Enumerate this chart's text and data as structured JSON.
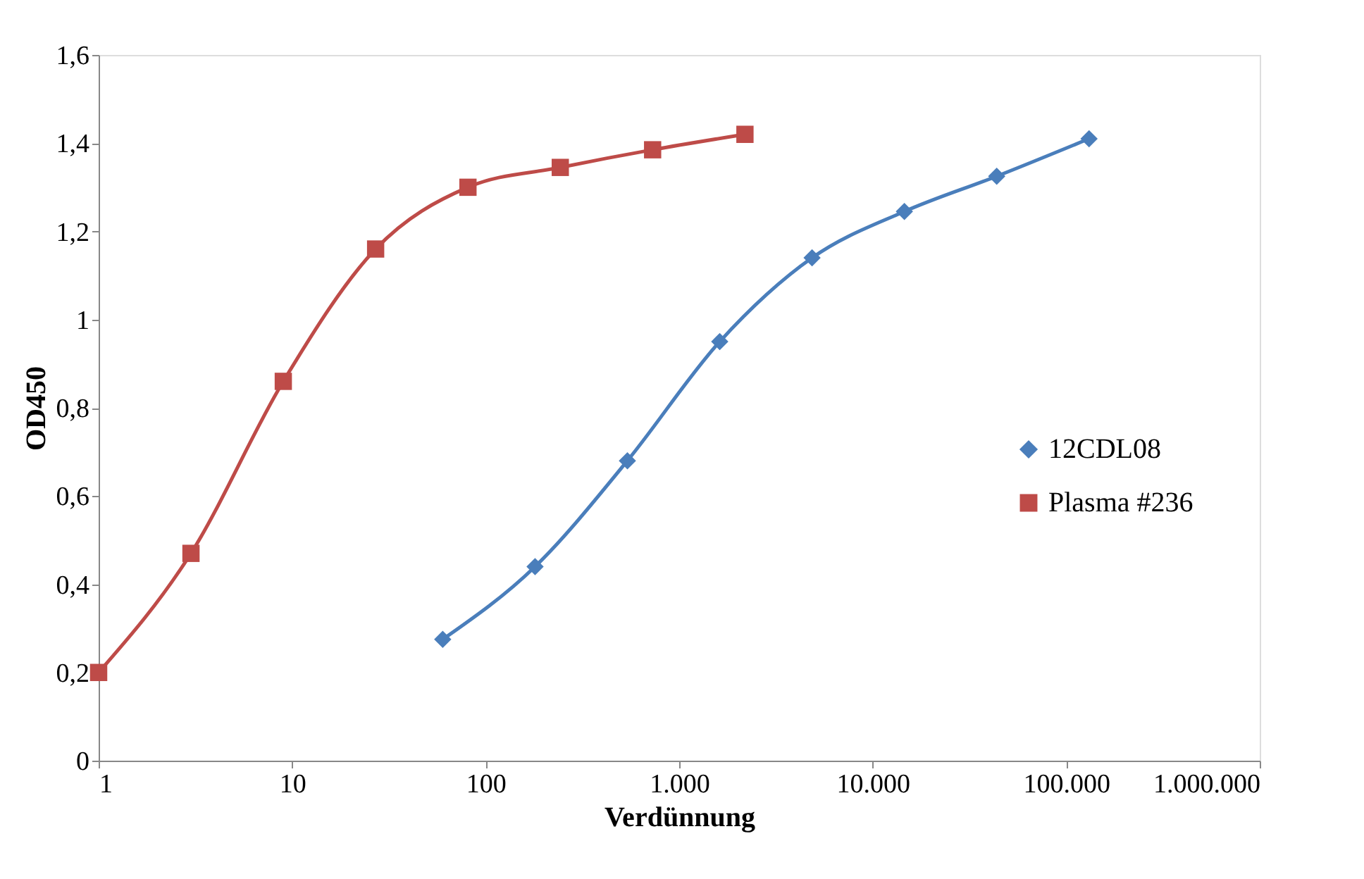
{
  "chart_data": {
    "type": "line",
    "xlabel": "Verdünnung",
    "ylabel": "OD450",
    "log": "x",
    "marker": "circle",
    "line_style": "solid",
    "grid": false,
    "legend": "right",
    "xlim": [
      1,
      1000000
    ],
    "xticks": [
      1,
      10,
      100,
      {
        "value": 1000,
        "label": "1.000"
      },
      {
        "value": 10000,
        "label": "10.000"
      },
      {
        "value": 100000,
        "label": "100.000"
      },
      {
        "value": 1000000,
        "label": "1.000.000"
      }
    ],
    "ylim": [
      0,
      1.6
    ],
    "yticks": [
      0,
      {
        "value": 0.2,
        "label": "0,2"
      },
      {
        "value": 0.4,
        "label": "0,4"
      },
      {
        "value": 0.6,
        "label": "0,6"
      },
      {
        "value": 0.8,
        "label": "0,8"
      },
      1,
      {
        "value": 1.2,
        "label": "1,2"
      },
      {
        "value": 1.4,
        "label": "1,4"
      },
      {
        "value": 1.6,
        "label": "1,6"
      }
    ],
    "series": [
      {
        "name": "12CDL08",
        "color": "#4a7ebb",
        "marker": "diamond",
        "x": [
          60,
          180,
          540,
          1620,
          4860,
          14580,
          43740,
          131220
        ],
        "values": [
          0.275,
          0.44,
          0.68,
          0.95,
          1.14,
          1.245,
          1.325,
          1.41
        ]
      },
      {
        "name": "Plasma #236",
        "color": "#be4b48",
        "marker": "square",
        "x": [
          1,
          3,
          9,
          27,
          81,
          243,
          729,
          2187
        ],
        "values": [
          0.2,
          0.47,
          0.86,
          1.16,
          1.3,
          1.345,
          1.385,
          1.42
        ]
      }
    ]
  }
}
